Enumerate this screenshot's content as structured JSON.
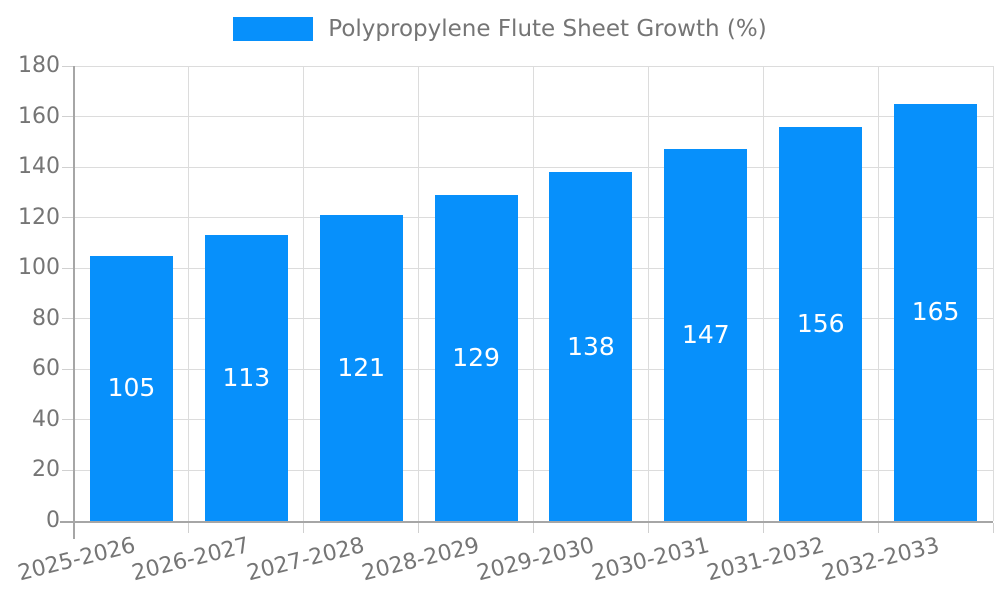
{
  "legend": {
    "label": "Polypropylene Flute Sheet Growth (%)"
  },
  "colors": {
    "bar": "#0790fb",
    "grid": "#dcdcdc",
    "axis": "#a6a6a6",
    "text": "#757575",
    "bar_label": "#ffffff",
    "background": "#ffffff"
  },
  "chart_data": {
    "type": "bar",
    "title": "",
    "xlabel": "",
    "ylabel": "",
    "categories": [
      "2025-2026",
      "2026-2027",
      "2027-2028",
      "2028-2029",
      "2029-2030",
      "2030-2031",
      "2031-2032",
      "2032-2033"
    ],
    "series": [
      {
        "name": "Polypropylene Flute Sheet Growth (%)",
        "values": [
          105,
          113,
          121,
          129,
          138,
          147,
          156,
          165
        ]
      }
    ],
    "ylim": [
      0,
      180
    ],
    "ytick_step": 20,
    "ytick_labels": [
      "0",
      "20",
      "40",
      "60",
      "80",
      "100",
      "120",
      "140",
      "160",
      "180"
    ],
    "grid": true,
    "bar_value_labels_shown": true,
    "legend_position": "top-center"
  }
}
